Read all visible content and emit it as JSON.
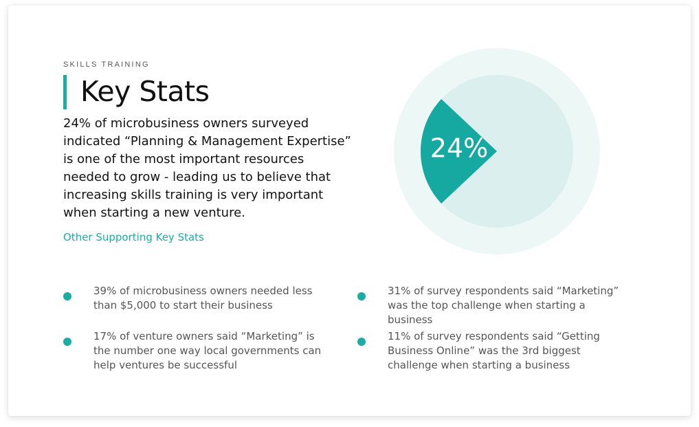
{
  "eyebrow": "SKILLS TRAINING",
  "title": "Key Stats",
  "lead": "24% of microbusiness owners surveyed indicated “Planning & Management Expertise” is one of the most important resources needed to grow - leading us to believe that increasing skills training is very important when starting a new venture.",
  "supporting_link": "Other Supporting Key Stats",
  "colors": {
    "accent": "#1bada4",
    "slice": "#16a9a2",
    "pie_fill": "#dbf0ee",
    "pie_ring": "#edf7f6"
  },
  "bullets": [
    "39% of microbusiness owners needed less than $5,000 to start their business",
    "17% of venture owners said “Marketing” is the number one way local governments can help ventures be successful",
    "31% of survey respondents said “Marketing” was the top challenge when starting a business",
    "11% of survey respondents said “Getting Business Online” was the 3rd biggest challenge when starting a business"
  ],
  "chart_data": {
    "type": "pie",
    "values": [
      24,
      76
    ],
    "highlight_value": 24,
    "label": "24%"
  }
}
